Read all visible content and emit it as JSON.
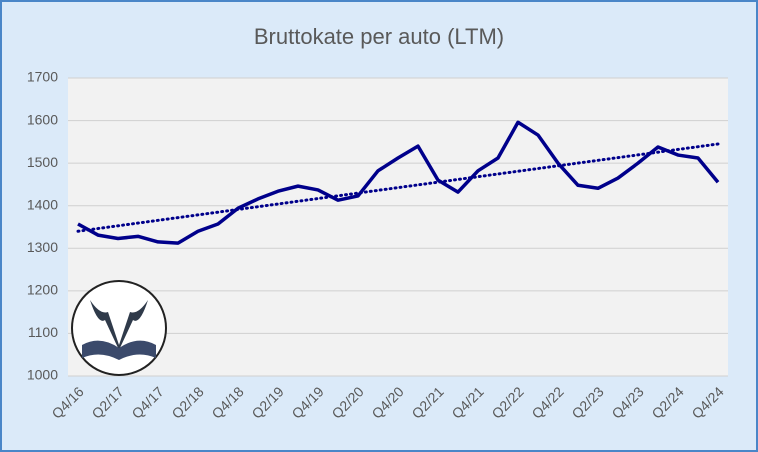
{
  "chart_data": {
    "type": "line",
    "title": "Bruttokate per auto (LTM)",
    "categories": [
      "Q4/16",
      null,
      "Q2/17",
      null,
      "Q4/17",
      null,
      "Q2/18",
      null,
      "Q4/18",
      null,
      "Q2/19",
      null,
      "Q4/19",
      null,
      "Q2/20",
      null,
      "Q4/20",
      null,
      "Q2/21",
      null,
      "Q4/21",
      null,
      "Q2/22",
      null,
      "Q4/22",
      null,
      "Q2/23",
      null,
      "Q4/23",
      null,
      "Q2/24",
      null,
      "Q4/24"
    ],
    "series": [
      {
        "color": "#00008b",
        "values": [
          1357,
          1331,
          1323,
          1328,
          1315,
          1312,
          1340,
          1357,
          1394,
          1416,
          1434,
          1446,
          1437,
          1413,
          1423,
          1482,
          1512,
          1540,
          1460,
          1432,
          1482,
          1512,
          1596,
          1566,
          1500,
          1448,
          1441,
          1465,
          1500,
          1538,
          1519,
          1512,
          1455
        ]
      }
    ],
    "trendline": {
      "color": "#00008b",
      "values": [
        1340,
        1545
      ]
    },
    "ylim": [
      1000,
      1700
    ],
    "yticks": [
      1000,
      1100,
      1200,
      1300,
      1400,
      1500,
      1600,
      1700
    ],
    "grid": true
  }
}
